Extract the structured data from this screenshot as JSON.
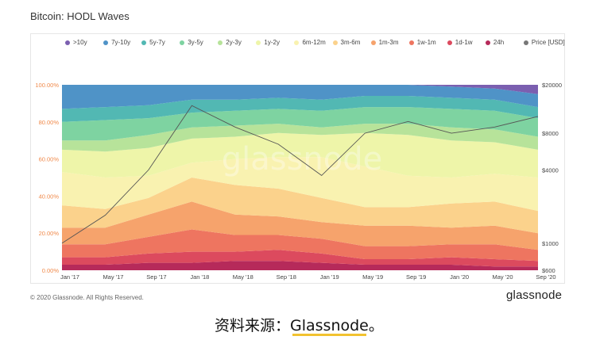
{
  "title": "Bitcoin: HODL Waves",
  "copyright": "© 2020 Glassnode. All Rights Reserved.",
  "brand": "glassnode",
  "source_caption": "资料来源：Glassnode。",
  "watermark": "glassnode",
  "colors": {
    "accent_orange": "#f08a4b",
    "underline": "#f2c230",
    "price_line": "#555555"
  },
  "chart_data": {
    "type": "area",
    "title": "Bitcoin: HODL Waves",
    "legend_position": "top",
    "grid": false,
    "x": [
      "Jan '17",
      "May '17",
      "Sep '17",
      "Jan '18",
      "May '18",
      "Sep '18",
      "Jan '19",
      "May '19",
      "Sep '19",
      "Jan '20",
      "May '20",
      "Sep '20"
    ],
    "y_left": {
      "ticks": [
        "0.00%",
        "20.00%",
        "40.00%",
        "60.00%",
        "80.00%",
        "100.00%"
      ],
      "range": [
        0,
        100
      ],
      "unit": "%"
    },
    "y_right": {
      "ticks": [
        "$600",
        "$1000",
        "$4000",
        "$8000",
        "$20000"
      ],
      "scale": "log"
    },
    "series": [
      {
        "name": ">10y",
        "color": "#7b5fb0",
        "values": [
          0,
          0,
          0,
          0,
          0,
          0,
          0,
          0,
          0,
          1,
          2,
          5
        ]
      },
      {
        "name": "7y-10y",
        "color": "#4f93c7",
        "values": [
          13,
          12,
          11,
          8,
          8,
          7,
          8,
          6,
          6,
          6,
          6,
          7
        ]
      },
      {
        "name": "5y-7y",
        "color": "#52b8b3",
        "values": [
          7,
          7,
          7,
          7,
          6,
          6,
          6,
          6,
          6,
          6,
          6,
          6
        ]
      },
      {
        "name": "3y-5y",
        "color": "#7ed3a1",
        "values": [
          10,
          11,
          9,
          8,
          8,
          8,
          9,
          9,
          9,
          10,
          10,
          10
        ]
      },
      {
        "name": "2y-3y",
        "color": "#b7e39a",
        "values": [
          5,
          6,
          7,
          6,
          6,
          5,
          4,
          5,
          6,
          7,
          7,
          7
        ]
      },
      {
        "name": "1y-2y",
        "color": "#eef5a9",
        "values": [
          12,
          14,
          15,
          13,
          12,
          13,
          12,
          18,
          22,
          20,
          17,
          15
        ]
      },
      {
        "name": "6m-12m",
        "color": "#f9f2b0",
        "values": [
          18,
          17,
          12,
          8,
          14,
          17,
          22,
          22,
          17,
          14,
          15,
          18
        ]
      },
      {
        "name": "3m-6m",
        "color": "#fbd28c",
        "values": [
          12,
          10,
          9,
          13,
          16,
          15,
          13,
          10,
          10,
          13,
          13,
          12
        ]
      },
      {
        "name": "1m-3m",
        "color": "#f6a36c",
        "values": [
          9,
          9,
          12,
          15,
          11,
          10,
          9,
          11,
          11,
          9,
          10,
          9
        ]
      },
      {
        "name": "1w-1m",
        "color": "#ee7560",
        "values": [
          7,
          7,
          9,
          12,
          9,
          8,
          8,
          7,
          7,
          7,
          8,
          6
        ]
      },
      {
        "name": "1d-1w",
        "color": "#dc4a5e",
        "values": [
          4,
          4,
          5,
          6,
          5,
          6,
          5,
          3,
          3,
          4,
          4,
          3
        ]
      },
      {
        "name": "24h",
        "color": "#b62a5a",
        "values": [
          3,
          3,
          4,
          4,
          5,
          5,
          4,
          3,
          3,
          3,
          2,
          2
        ]
      }
    ],
    "price_series": {
      "name": "Price [USD]",
      "color": "#777777",
      "values": [
        1000,
        1700,
        4000,
        13500,
        9000,
        6500,
        3600,
        8000,
        10000,
        8000,
        9000,
        11000
      ]
    }
  }
}
